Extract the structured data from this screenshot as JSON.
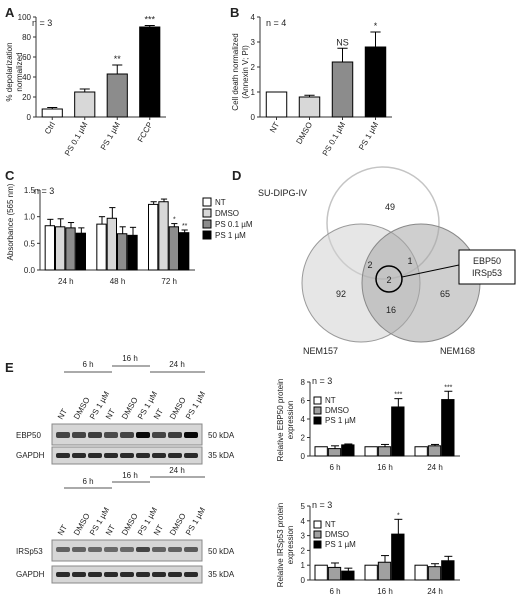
{
  "panels": {
    "A": {
      "letter": "A",
      "n_label": "n = 3",
      "ylabel_line1": "% depolarization",
      "ylabel_line2": "normalized"
    },
    "B": {
      "letter": "B",
      "n_label": "n = 4",
      "ylabel_line1": "Cell death normalized",
      "ylabel_line2": "(Annexin V; PI)"
    },
    "C": {
      "letter": "C",
      "n_label": "n = 3",
      "ylabel": "Absorbance (565 nm)"
    },
    "D": {
      "letter": "D",
      "set_top": "SU-DIPG-IV",
      "set_left": "NEM157",
      "set_right": "NEM168",
      "counts": {
        "top_only": "49",
        "left_only": "92",
        "right_only": "65",
        "top_left": "2",
        "top_right": "1",
        "left_right": "16",
        "center": "2"
      },
      "callout_line1": "EBP50",
      "callout_line2": "IRSp53"
    },
    "E": {
      "letter": "E",
      "blot1": {
        "time_labels": [
          "6 h",
          "16 h",
          "24 h"
        ],
        "lane_labels": [
          "NT",
          "DMSO",
          "PS 1 µM",
          "NT",
          "DMSO",
          "PS 1 µM",
          "NT",
          "DMSO",
          "PS 1 µM"
        ],
        "protein_top": "EBP50",
        "protein_bottom": "GAPDH",
        "kda_top": "50 kDA",
        "kda_bottom": "35 kDA"
      },
      "blot2": {
        "time_labels": [
          "6 h",
          "16 h",
          "24 h"
        ],
        "lane_labels": [
          "NT",
          "DMSO",
          "PS 1 µM",
          "NT",
          "DMSO",
          "PS 1 µM",
          "NT",
          "DMSO",
          "PS 1 µM"
        ],
        "protein_top": "IRSp53",
        "protein_bottom": "GAPDH",
        "kda_top": "50 kDA",
        "kda_bottom": "35 kDA"
      },
      "chart1": {
        "n_label": "n = 3",
        "ylabel_line1": "Relative EBP50 protein",
        "ylabel_line2": "expression"
      },
      "chart2": {
        "n_label": "n = 3",
        "ylabel_line1": "Relative IRSp53 protein",
        "ylabel_line2": "expression"
      }
    }
  },
  "chart_data": [
    {
      "id": "A",
      "type": "bar",
      "categories": [
        "Ctrl",
        "PS 0.1 µM",
        "PS 1 µM",
        "FCCP"
      ],
      "values": [
        8,
        25,
        43,
        90
      ],
      "errors": [
        1.5,
        3,
        9,
        1.5
      ],
      "significance": [
        "",
        "",
        "**",
        "***"
      ],
      "colors": [
        "#ffffff",
        "#d8d8d8",
        "#8c8c8c",
        "#000000"
      ],
      "ylim": [
        0,
        100
      ],
      "yticks": [
        "0",
        "20",
        "40",
        "60",
        "80",
        "100"
      ]
    },
    {
      "id": "B",
      "type": "bar",
      "categories": [
        "NT",
        "DMSO",
        "PS 0.1 µM",
        "PS 1 µM"
      ],
      "values": [
        1.0,
        0.8,
        2.2,
        2.8
      ],
      "errors": [
        0,
        0.07,
        0.55,
        0.6
      ],
      "significance": [
        "",
        "",
        "NS",
        "*"
      ],
      "colors": [
        "#ffffff",
        "#d8d8d8",
        "#8c8c8c",
        "#000000"
      ],
      "ylim": [
        0,
        4
      ],
      "yticks": [
        "0",
        "1",
        "2",
        "3",
        "4"
      ]
    },
    {
      "id": "C",
      "type": "bar",
      "categories": [
        "24 h",
        "48 h",
        "72 h"
      ],
      "series": [
        {
          "name": "NT",
          "values": [
            0.83,
            0.86,
            1.23
          ],
          "errors": [
            0.12,
            0.14,
            0.05
          ],
          "color": "#ffffff"
        },
        {
          "name": "DMSO",
          "values": [
            0.81,
            0.97,
            1.28
          ],
          "errors": [
            0.15,
            0.2,
            0.05
          ],
          "color": "#d8d8d8"
        },
        {
          "name": "PS 0.1 µM",
          "values": [
            0.79,
            0.68,
            0.81
          ],
          "errors": [
            0.1,
            0.13,
            0.06
          ],
          "color": "#8c8c8c"
        },
        {
          "name": "PS 1 µM",
          "values": [
            0.69,
            0.65,
            0.7
          ],
          "errors": [
            0.1,
            0.15,
            0.05
          ],
          "color": "#000000"
        }
      ],
      "significance": [
        [
          "",
          "",
          "",
          ""
        ],
        [
          "",
          "",
          "",
          ""
        ],
        [
          "",
          "",
          "*",
          "**"
        ]
      ],
      "ylim": [
        0,
        1.5
      ],
      "yticks": [
        "0.0",
        "0.5",
        "1.0",
        "1.5"
      ],
      "legend": "right"
    },
    {
      "id": "E1",
      "type": "bar",
      "categories": [
        "6 h",
        "16 h",
        "24 h"
      ],
      "series": [
        {
          "name": "NT",
          "values": [
            1.0,
            1.0,
            1.0
          ],
          "errors": [
            0,
            0,
            0
          ],
          "color": "#ffffff"
        },
        {
          "name": "DMSO",
          "values": [
            0.8,
            1.0,
            1.1
          ],
          "errors": [
            0.3,
            0.25,
            0.15
          ],
          "color": "#a0a0a0"
        },
        {
          "name": "PS 1 µM",
          "values": [
            1.2,
            5.3,
            6.1
          ],
          "errors": [
            0.1,
            0.9,
            0.9
          ],
          "color": "#000000"
        }
      ],
      "significance": [
        [
          "",
          "",
          ""
        ],
        [
          "",
          "",
          "***"
        ],
        [
          "",
          "",
          "***"
        ]
      ],
      "ylim": [
        0,
        8
      ],
      "yticks": [
        "0",
        "2",
        "4",
        "6",
        "8"
      ],
      "legend": "top-left"
    },
    {
      "id": "E2",
      "type": "bar",
      "categories": [
        "6 h",
        "16 h",
        "24 h"
      ],
      "series": [
        {
          "name": "NT",
          "values": [
            1.0,
            1.0,
            1.0
          ],
          "errors": [
            0,
            0,
            0
          ],
          "color": "#ffffff"
        },
        {
          "name": "DMSO",
          "values": [
            0.85,
            1.2,
            0.9
          ],
          "errors": [
            0.3,
            0.45,
            0.2
          ],
          "color": "#a0a0a0"
        },
        {
          "name": "PS 1 µM",
          "values": [
            0.6,
            3.1,
            1.3
          ],
          "errors": [
            0.2,
            1.0,
            0.3
          ],
          "color": "#000000"
        }
      ],
      "significance": [
        [
          "",
          "",
          ""
        ],
        [
          "",
          "",
          "*"
        ],
        [
          "",
          "",
          ""
        ]
      ],
      "ylim": [
        0,
        5
      ],
      "yticks": [
        "0",
        "1",
        "2",
        "3",
        "4",
        "5"
      ],
      "legend": "top-left"
    }
  ]
}
